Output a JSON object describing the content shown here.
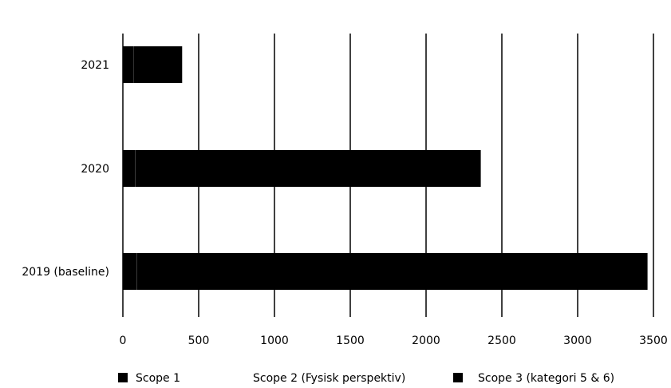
{
  "chart_data": {
    "type": "bar",
    "orientation": "horizontal",
    "stacked": true,
    "categories": [
      "2021",
      "2020",
      "2019 (baseline)"
    ],
    "series": [
      {
        "name": "Scope 1",
        "values": [
          70,
          80,
          90
        ],
        "color": "#000000",
        "swatch": true
      },
      {
        "name": "Scope 2 (Fysisk perspektiv)",
        "values": [
          1,
          1,
          1
        ],
        "color": "#ffffff",
        "swatch": false
      },
      {
        "name": "Scope 3 (kategori 5 & 6)",
        "values": [
          320,
          2280,
          3370
        ],
        "color": "#000000",
        "swatch": true
      }
    ],
    "xlim": [
      0,
      3500
    ],
    "xticks": [
      0,
      500,
      1000,
      1500,
      2000,
      2500,
      3000,
      3500
    ],
    "grid": "vertical",
    "legend": "bottom",
    "title": "",
    "xlabel": "",
    "ylabel": ""
  }
}
